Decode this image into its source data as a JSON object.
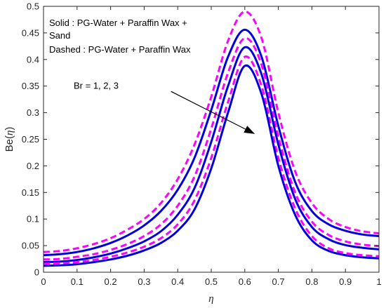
{
  "chart_data": {
    "type": "line",
    "xlabel_prefix": "",
    "xlabel_symbol": "η",
    "ylabel_prefix": "Be(",
    "ylabel_symbol": "η",
    "ylabel_suffix": ")",
    "xlim": [
      0,
      1
    ],
    "ylim": [
      0,
      0.5
    ],
    "x_ticks": [
      0,
      0.1,
      0.2,
      0.3,
      0.4,
      0.5,
      0.6,
      0.7,
      0.8,
      0.9,
      1
    ],
    "y_ticks": [
      0,
      0.05,
      0.1,
      0.15,
      0.2,
      0.25,
      0.3,
      0.35,
      0.4,
      0.45,
      0.5
    ],
    "x_tick_labels": [
      "0",
      "0.1",
      "0.2",
      "0.3",
      "0.4",
      "0.5",
      "0.6",
      "0.7",
      "0.8",
      "0.9",
      "1"
    ],
    "y_tick_labels": [
      "0",
      "0.05",
      "0.1",
      "0.15",
      "0.2",
      "0.25",
      "0.3",
      "0.35",
      "0.4",
      "0.45",
      "0.5"
    ],
    "grid": false,
    "annotations": {
      "legend_line1": "Solid : PG-Water + Paraffin Wax +",
      "legend_line2": "Sand",
      "legend_line3": "Dashed : PG-Water + Paraffin Wax",
      "arrow_label": "Br = 1, 2, 3",
      "arrow_from": [
        0.38,
        0.34
      ],
      "arrow_to": [
        0.63,
        0.26
      ]
    },
    "x": [
      0,
      0.05,
      0.1,
      0.15,
      0.2,
      0.25,
      0.3,
      0.35,
      0.4,
      0.45,
      0.5,
      0.55,
      0.6,
      0.65,
      0.7,
      0.75,
      0.8,
      0.85,
      0.9,
      0.95,
      1
    ],
    "series": [
      {
        "style": "dashed",
        "color": "#ff00ff",
        "values": [
          0.038,
          0.04,
          0.045,
          0.053,
          0.064,
          0.08,
          0.1,
          0.13,
          0.175,
          0.24,
          0.33,
          0.435,
          0.49,
          0.44,
          0.3,
          0.19,
          0.13,
          0.1,
          0.085,
          0.077,
          0.073
        ]
      },
      {
        "style": "solid",
        "color": "#0000dd",
        "values": [
          0.032,
          0.034,
          0.038,
          0.045,
          0.055,
          0.069,
          0.088,
          0.115,
          0.155,
          0.215,
          0.305,
          0.405,
          0.456,
          0.405,
          0.275,
          0.17,
          0.115,
          0.09,
          0.078,
          0.071,
          0.068
        ]
      },
      {
        "style": "dashed",
        "color": "#ff00ff",
        "values": [
          0.024,
          0.025,
          0.029,
          0.034,
          0.042,
          0.053,
          0.068,
          0.09,
          0.125,
          0.18,
          0.27,
          0.375,
          0.44,
          0.39,
          0.255,
          0.15,
          0.095,
          0.07,
          0.058,
          0.052,
          0.049
        ]
      },
      {
        "style": "solid",
        "color": "#0000dd",
        "values": [
          0.019,
          0.02,
          0.023,
          0.028,
          0.035,
          0.045,
          0.058,
          0.077,
          0.108,
          0.158,
          0.245,
          0.35,
          0.423,
          0.372,
          0.24,
          0.138,
          0.085,
          0.062,
          0.051,
          0.046,
          0.043
        ]
      },
      {
        "style": "dashed",
        "color": "#ff00ff",
        "values": [
          0.016,
          0.017,
          0.019,
          0.023,
          0.029,
          0.037,
          0.048,
          0.064,
          0.09,
          0.135,
          0.215,
          0.32,
          0.405,
          0.35,
          0.215,
          0.12,
          0.068,
          0.045,
          0.036,
          0.032,
          0.03
        ]
      },
      {
        "style": "solid",
        "color": "#0000dd",
        "values": [
          0.012,
          0.013,
          0.015,
          0.019,
          0.024,
          0.031,
          0.041,
          0.055,
          0.078,
          0.118,
          0.195,
          0.3,
          0.388,
          0.335,
          0.2,
          0.108,
          0.06,
          0.04,
          0.032,
          0.028,
          0.026
        ]
      }
    ]
  }
}
